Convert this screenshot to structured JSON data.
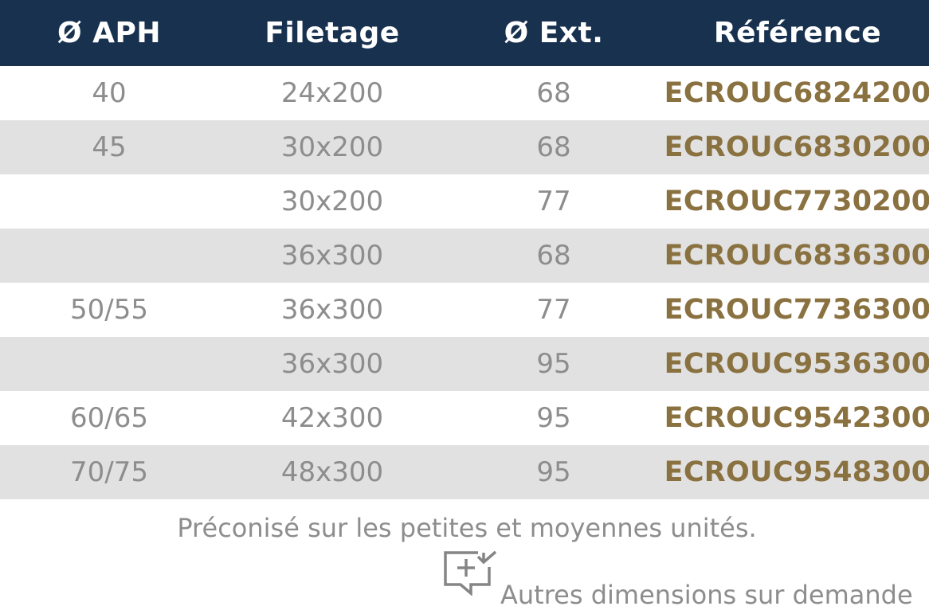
{
  "table": {
    "headers": [
      "Ø APH",
      "Filetage",
      "Ø Ext.",
      "Référence"
    ],
    "rows": [
      {
        "aph": "40",
        "filetage": "24x200",
        "ext": "68",
        "ref": "ECROUC6824200"
      },
      {
        "aph": "45",
        "filetage": "30x200",
        "ext": "68",
        "ref": "ECROUC6830200"
      },
      {
        "aph": "",
        "filetage": "30x200",
        "ext": "77",
        "ref": "ECROUC7730200"
      },
      {
        "aph": "",
        "filetage": "36x300",
        "ext": "68",
        "ref": "ECROUC6836300"
      },
      {
        "aph": "50/55",
        "filetage": "36x300",
        "ext": "77",
        "ref": "ECROUC7736300"
      },
      {
        "aph": "",
        "filetage": "36x300",
        "ext": "95",
        "ref": "ECROUC9536300"
      },
      {
        "aph": "60/65",
        "filetage": "42x300",
        "ext": "95",
        "ref": "ECROUC9542300"
      },
      {
        "aph": "70/75",
        "filetage": "48x300",
        "ext": "95",
        "ref": "ECROUC9548300"
      }
    ]
  },
  "note": "Préconisé sur les petites et moyennes unités.",
  "extra": {
    "icon": "comment-add-icon",
    "text": "Autres dimensions sur demande"
  },
  "colors": {
    "header_bg": "#17314f",
    "header_text": "#ffffff",
    "row_alt_bg": "#e1e1e1",
    "body_text": "#8d8d8d",
    "reference_text": "#8a7140"
  }
}
